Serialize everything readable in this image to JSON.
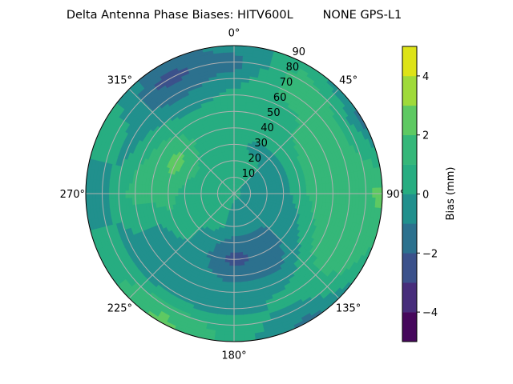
{
  "chart_data": {
    "type": "heatmap",
    "subtype": "polar-filled-contour",
    "title": "Delta Antenna Phase Biases: HITV600L        NONE GPS-L1",
    "angular_axis": {
      "direction": "clockwise",
      "zero_location": "top",
      "tick_labels": [
        "0°",
        "45°",
        "90°",
        "135°",
        "180°",
        "225°",
        "270°",
        "315°"
      ],
      "tick_values": [
        0,
        45,
        90,
        135,
        180,
        225,
        270,
        315
      ]
    },
    "radial_axis": {
      "range": [
        0,
        90
      ],
      "tick_values": [
        10,
        20,
        30,
        40,
        50,
        60,
        70,
        80,
        90
      ],
      "tick_labels": [
        "10",
        "20",
        "30",
        "40",
        "50",
        "60",
        "70",
        "80",
        "90"
      ]
    },
    "grid": true,
    "azimuths": [
      0,
      30,
      60,
      90,
      120,
      150,
      180,
      210,
      240,
      270,
      300,
      330
    ],
    "radii": [
      0,
      10,
      20,
      30,
      40,
      50,
      60,
      70,
      80,
      90
    ],
    "values": [
      [
        0.3,
        0.5,
        0.5,
        0.5,
        0.5,
        0.3,
        0.3,
        -0.5,
        -1.5,
        -0.5
      ],
      [
        0.3,
        0.5,
        0.5,
        -0.5,
        0.5,
        0.5,
        0.7,
        1.5,
        1.5,
        0.5
      ],
      [
        0.3,
        -0.5,
        -0.5,
        -0.5,
        0.5,
        1.5,
        1.5,
        1.5,
        0.5,
        -1.5
      ],
      [
        0.3,
        -0.5,
        -0.5,
        -0.5,
        0.5,
        1.5,
        1.5,
        1.5,
        1.5,
        2.5
      ],
      [
        0.3,
        -0.5,
        -0.5,
        -0.5,
        -0.5,
        0.5,
        1.5,
        1.5,
        1.5,
        0.5
      ],
      [
        0.3,
        -0.5,
        -0.5,
        -1.5,
        -1.5,
        -1.5,
        -0.5,
        0.5,
        -0.5,
        -1.5
      ],
      [
        0.3,
        -0.5,
        -0.5,
        -1.5,
        -2.5,
        -1.5,
        -0.5,
        -0.5,
        0.5,
        0.5
      ],
      [
        0.3,
        0.5,
        0.5,
        -0.5,
        -0.5,
        -0.5,
        -0.5,
        -0.5,
        1.5,
        2.5
      ],
      [
        0.3,
        0.5,
        0.5,
        0.5,
        0.5,
        -0.5,
        -0.5,
        -0.5,
        0.5,
        0.5
      ],
      [
        0.3,
        0.5,
        0.5,
        0.5,
        1.5,
        1.5,
        1.5,
        0.5,
        -0.5,
        -0.5
      ],
      [
        0.3,
        0.5,
        0.5,
        1.5,
        2.5,
        1.5,
        0.5,
        -0.5,
        0.5,
        0.5
      ],
      [
        0.3,
        0.5,
        0.5,
        0.5,
        0.5,
        0.5,
        -0.5,
        -1.5,
        -2.5,
        -1.5
      ]
    ],
    "value_units": "mm",
    "colorbar": {
      "label": "Bias (mm)",
      "range": [
        -5,
        5
      ],
      "levels": [
        -5,
        -4,
        -3,
        -2,
        -1,
        0,
        1,
        2,
        3,
        4,
        5
      ],
      "tick_values": [
        -4,
        -2,
        0,
        2,
        4
      ],
      "tick_labels": [
        "−4",
        "−2",
        "0",
        "2",
        "4"
      ],
      "colormap": "viridis",
      "colors": [
        "#46085c",
        "#472d7b",
        "#3b518b",
        "#2c718e",
        "#21908d",
        "#27ad81",
        "#35b779",
        "#5ec962",
        "#9fda3a",
        "#dde318"
      ]
    }
  }
}
